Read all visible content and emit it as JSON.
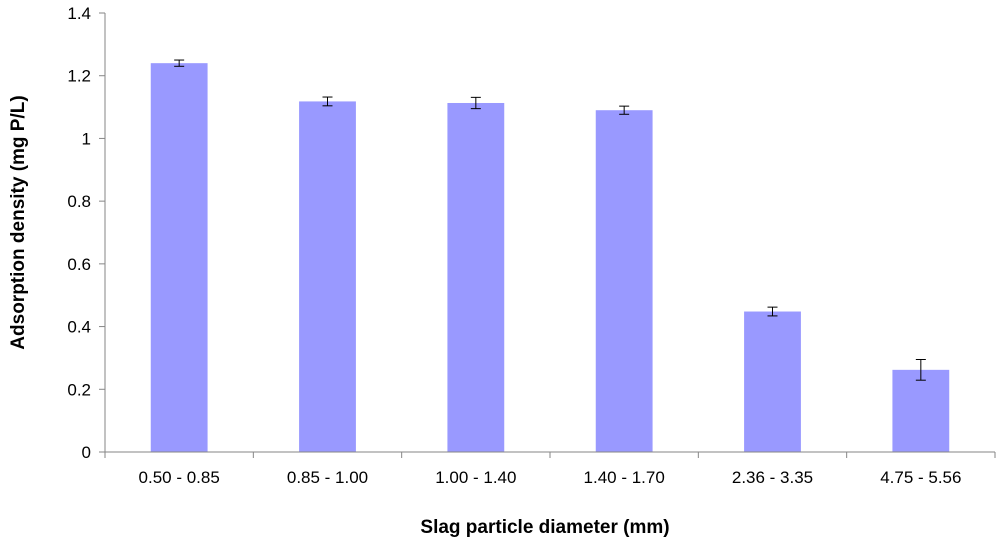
{
  "chart_data": {
    "type": "bar",
    "title": "",
    "xlabel": "Slag particle diameter (mm)",
    "ylabel": "Adsorption density (mg P/L)",
    "ylim": [
      0,
      1.4
    ],
    "yticks": [
      "0",
      "0.2",
      "0.4",
      "0.6",
      "0.8",
      "1",
      "1.2",
      "1.4"
    ],
    "categories": [
      "0.50 - 0.85",
      "0.85 - 1.00",
      "1.00 - 1.40",
      "1.40 - 1.70",
      "2.36 - 3.35",
      "4.75 - 5.56"
    ],
    "values": [
      1.24,
      1.118,
      1.113,
      1.09,
      0.448,
      0.262
    ],
    "errors": [
      0.01,
      0.014,
      0.018,
      0.013,
      0.014,
      0.033
    ],
    "bar_color": "#9999ff",
    "grid": false,
    "legend": "none"
  }
}
